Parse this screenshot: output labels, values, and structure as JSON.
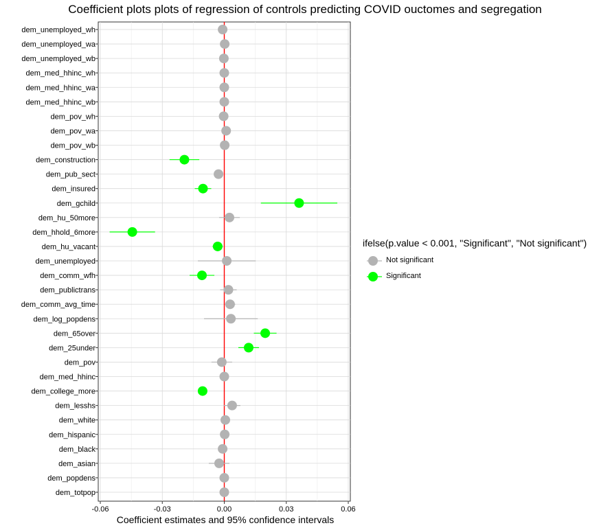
{
  "chart_data": {
    "type": "scatter",
    "title": "Coefficient plots plots of regression of controls predicting COVID ouctomes and segregation",
    "xlabel": "Coefficient estimates and 95% confidence intervals",
    "ylabel": "",
    "xlim": [
      -0.061,
      0.061
    ],
    "xticks": [
      -0.06,
      -0.03,
      0.0,
      0.03,
      0.06
    ],
    "xtick_labels": [
      "-0.06",
      "-0.03",
      "0.00",
      "0.03",
      "0.06"
    ],
    "reference_line": {
      "x": 0,
      "color": "#ff0000"
    },
    "grid": true,
    "legend": {
      "title": "ifelse(p.value < 0.001, \"Significant\", \"Not significant\")",
      "placement": "right",
      "entries": [
        {
          "label": "Not significant",
          "color": "#b3b3b3"
        },
        {
          "label": "Significant",
          "color": "#00ff00"
        }
      ]
    },
    "colors": {
      "Not significant": "#b3b3b3",
      "Significant": "#00ff00"
    },
    "points": [
      {
        "term": "dem_unemployed_wh",
        "estimate": -0.0008,
        "low": -0.0018,
        "high": 0.0002,
        "group": "Not significant"
      },
      {
        "term": "dem_unemployed_wa",
        "estimate": 0.0002,
        "low": -0.0008,
        "high": 0.0012,
        "group": "Not significant"
      },
      {
        "term": "dem_unemployed_wb",
        "estimate": -0.0002,
        "low": -0.0012,
        "high": 0.0008,
        "group": "Not significant"
      },
      {
        "term": "dem_med_hhinc_wh",
        "estimate": 0.0,
        "low": -0.001,
        "high": 0.001,
        "group": "Not significant"
      },
      {
        "term": "dem_med_hhinc_wa",
        "estimate": 0.0,
        "low": -0.001,
        "high": 0.001,
        "group": "Not significant"
      },
      {
        "term": "dem_med_hhinc_wb",
        "estimate": 0.0,
        "low": -0.001,
        "high": 0.001,
        "group": "Not significant"
      },
      {
        "term": "dem_pov_wh",
        "estimate": -0.0003,
        "low": -0.0013,
        "high": 0.0007,
        "group": "Not significant"
      },
      {
        "term": "dem_pov_wa",
        "estimate": 0.0009,
        "low": -0.0003,
        "high": 0.0021,
        "group": "Not significant"
      },
      {
        "term": "dem_pov_wb",
        "estimate": 0.0002,
        "low": -0.0008,
        "high": 0.0012,
        "group": "Not significant"
      },
      {
        "term": "dem_construction",
        "estimate": -0.0193,
        "low": -0.0265,
        "high": -0.0121,
        "group": "Significant"
      },
      {
        "term": "dem_pub_sect",
        "estimate": -0.0028,
        "low": -0.0048,
        "high": -0.0008,
        "group": "Not significant"
      },
      {
        "term": "dem_insured",
        "estimate": -0.0103,
        "low": -0.0143,
        "high": -0.0063,
        "group": "Significant"
      },
      {
        "term": "dem_gchild",
        "estimate": 0.0362,
        "low": 0.0177,
        "high": 0.0547,
        "group": "Significant"
      },
      {
        "term": "dem_hu_50more",
        "estimate": 0.0025,
        "low": -0.0025,
        "high": 0.0075,
        "group": "Not significant"
      },
      {
        "term": "dem_hhold_6more",
        "estimate": -0.0445,
        "low": -0.0555,
        "high": -0.0335,
        "group": "Significant"
      },
      {
        "term": "dem_hu_vacant",
        "estimate": -0.0032,
        "low": -0.0057,
        "high": -0.0007,
        "group": "Significant"
      },
      {
        "term": "dem_unemployed",
        "estimate": 0.0012,
        "low": -0.0128,
        "high": 0.0152,
        "group": "Not significant"
      },
      {
        "term": "dem_comm_wfh",
        "estimate": -0.0108,
        "low": -0.0168,
        "high": -0.0048,
        "group": "Significant"
      },
      {
        "term": "dem_publictrans",
        "estimate": 0.002,
        "low": -0.002,
        "high": 0.006,
        "group": "Not significant"
      },
      {
        "term": "dem_comm_avg_time",
        "estimate": 0.0028,
        "low": 0.0003,
        "high": 0.0053,
        "group": "Not significant"
      },
      {
        "term": "dem_log_popdens",
        "estimate": 0.0032,
        "low": -0.0098,
        "high": 0.0162,
        "group": "Not significant"
      },
      {
        "term": "dem_65over",
        "estimate": 0.0198,
        "low": 0.0143,
        "high": 0.0253,
        "group": "Significant"
      },
      {
        "term": "dem_25under",
        "estimate": 0.0118,
        "low": 0.0068,
        "high": 0.0168,
        "group": "Significant"
      },
      {
        "term": "dem_pov",
        "estimate": -0.0012,
        "low": -0.0062,
        "high": 0.0038,
        "group": "Not significant"
      },
      {
        "term": "dem_med_hhinc",
        "estimate": 0.0,
        "low": -0.001,
        "high": 0.001,
        "group": "Not significant"
      },
      {
        "term": "dem_college_more",
        "estimate": -0.0105,
        "low": -0.0125,
        "high": -0.0085,
        "group": "Significant"
      },
      {
        "term": "dem_lesshs",
        "estimate": 0.0038,
        "low": -0.0002,
        "high": 0.0078,
        "group": "Not significant"
      },
      {
        "term": "dem_white",
        "estimate": 0.0005,
        "low": -0.0015,
        "high": 0.0025,
        "group": "Not significant"
      },
      {
        "term": "dem_hispanic",
        "estimate": 0.0002,
        "low": -0.0008,
        "high": 0.0012,
        "group": "Not significant"
      },
      {
        "term": "dem_black",
        "estimate": -0.0008,
        "low": -0.0023,
        "high": 0.0007,
        "group": "Not significant"
      },
      {
        "term": "dem_asian",
        "estimate": -0.0025,
        "low": -0.0075,
        "high": 0.0025,
        "group": "Not significant"
      },
      {
        "term": "dem_popdens",
        "estimate": 0.0,
        "low": -0.001,
        "high": 0.001,
        "group": "Not significant"
      },
      {
        "term": "dem_totpop",
        "estimate": 0.0,
        "low": -0.001,
        "high": 0.001,
        "group": "Not significant"
      }
    ]
  }
}
